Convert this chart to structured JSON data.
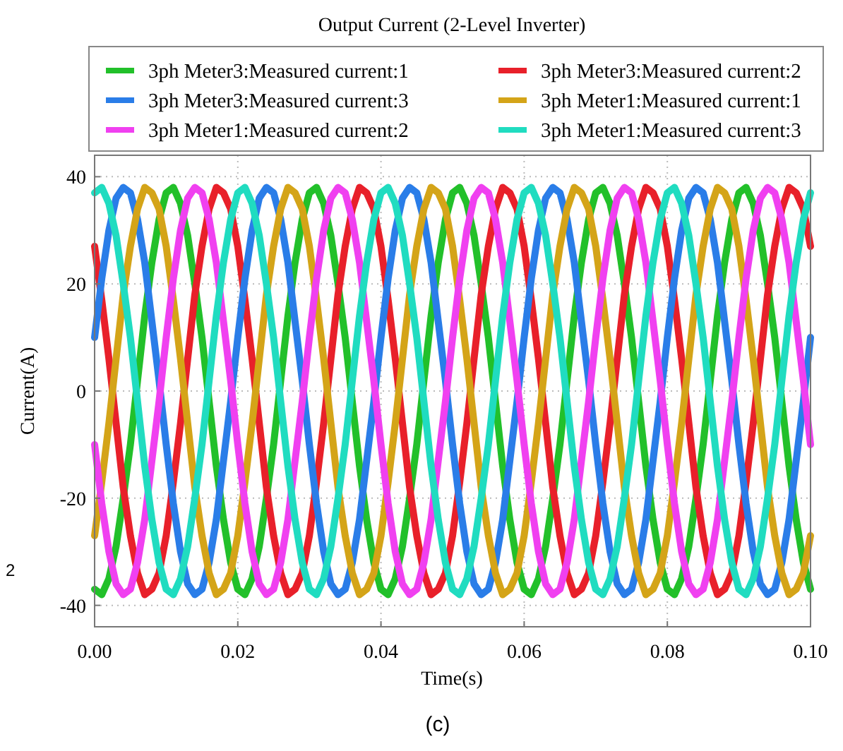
{
  "chart_data": {
    "type": "line",
    "title": "Output Current (2-Level Inverter)",
    "xlabel": "Time(s)",
    "ylabel": "Current(A)",
    "annotations": [
      "(c)",
      "2"
    ],
    "x": [
      0,
      0.001,
      0.002,
      0.003,
      0.004,
      0.005,
      0.006,
      0.007,
      0.008,
      0.009,
      0.01,
      0.011,
      0.012,
      0.013,
      0.014,
      0.015,
      0.016,
      0.017,
      0.018,
      0.019,
      0.02,
      0.021,
      0.022,
      0.023,
      0.024,
      0.025,
      0.026,
      0.027,
      0.028,
      0.029,
      0.03,
      0.031,
      0.032,
      0.033,
      0.034,
      0.035,
      0.036,
      0.037,
      0.038,
      0.039,
      0.04,
      0.041,
      0.042,
      0.043,
      0.044,
      0.045,
      0.046,
      0.047,
      0.048,
      0.049,
      0.05,
      0.051,
      0.052,
      0.053,
      0.054,
      0.055,
      0.056,
      0.057,
      0.058,
      0.059,
      0.06,
      0.061,
      0.062,
      0.063,
      0.064,
      0.065,
      0.066,
      0.067,
      0.068,
      0.069,
      0.07,
      0.071,
      0.072,
      0.073,
      0.074,
      0.075,
      0.076,
      0.077,
      0.078,
      0.079,
      0.08,
      0.081,
      0.082,
      0.083,
      0.084,
      0.085,
      0.086,
      0.087,
      0.088,
      0.089,
      0.09,
      0.091,
      0.092,
      0.093,
      0.094,
      0.095,
      0.096,
      0.097,
      0.098,
      0.099,
      0.1
    ],
    "series": [
      {
        "name": "3ph Meter3:Measured current:1",
        "color": "#22c02a",
        "values": [
          -37,
          -38,
          -35,
          -29,
          -20,
          -10,
          2,
          14,
          24,
          32,
          37,
          38,
          35,
          29,
          20,
          10,
          -2,
          -14,
          -24,
          -32,
          -37,
          -38,
          -35,
          -29,
          -20,
          -10,
          2,
          14,
          24,
          32,
          37,
          38,
          35,
          29,
          20,
          10,
          -2,
          -14,
          -24,
          -32,
          -37,
          -38,
          -35,
          -29,
          -20,
          -10,
          2,
          14,
          24,
          32,
          37,
          38,
          35,
          29,
          20,
          10,
          -2,
          -14,
          -24,
          -32,
          -37,
          -38,
          -35,
          -29,
          -20,
          -10,
          2,
          14,
          24,
          32,
          37,
          38,
          35,
          29,
          20,
          10,
          -2,
          -14,
          -24,
          -32,
          -37,
          -38,
          -35,
          -29,
          -20,
          -10,
          2,
          14,
          24,
          32,
          37,
          38,
          35,
          29,
          20,
          10,
          -2,
          -14,
          -24,
          -32,
          -37
        ]
      },
      {
        "name": "3ph Meter3:Measured current:2",
        "color": "#e8202a",
        "values": [
          27,
          17,
          6,
          -6,
          -18,
          -27,
          -34,
          -38,
          -37,
          -34,
          -27,
          -17,
          -6,
          6,
          18,
          27,
          34,
          38,
          37,
          34,
          27,
          17,
          6,
          -6,
          -18,
          -27,
          -34,
          -38,
          -37,
          -34,
          -27,
          -17,
          -6,
          6,
          18,
          27,
          34,
          38,
          37,
          34,
          27,
          17,
          6,
          -6,
          -18,
          -27,
          -34,
          -38,
          -37,
          -34,
          -27,
          -17,
          -6,
          6,
          18,
          27,
          34,
          38,
          37,
          34,
          27,
          17,
          6,
          -6,
          -18,
          -27,
          -34,
          -38,
          -37,
          -34,
          -27,
          -17,
          -6,
          6,
          18,
          27,
          34,
          38,
          37,
          34,
          27,
          17,
          6,
          -6,
          -18,
          -27,
          -34,
          -38,
          -37,
          -34,
          -27,
          -17,
          -6,
          6,
          18,
          27,
          34,
          38,
          37,
          34,
          27
        ]
      },
      {
        "name": "3ph Meter3:Measured current:3",
        "color": "#2a7de8",
        "values": [
          10,
          21,
          30,
          36,
          38,
          37,
          32,
          24,
          13,
          2,
          -10,
          -21,
          -30,
          -36,
          -38,
          -37,
          -32,
          -24,
          -13,
          -2,
          10,
          21,
          30,
          36,
          38,
          37,
          32,
          24,
          13,
          2,
          -10,
          -21,
          -30,
          -36,
          -38,
          -37,
          -32,
          -24,
          -13,
          -2,
          10,
          21,
          30,
          36,
          38,
          37,
          32,
          24,
          13,
          2,
          -10,
          -21,
          -30,
          -36,
          -38,
          -37,
          -32,
          -24,
          -13,
          -2,
          10,
          21,
          30,
          36,
          38,
          37,
          32,
          24,
          13,
          2,
          -10,
          -21,
          -30,
          -36,
          -38,
          -37,
          -32,
          -24,
          -13,
          -2,
          10,
          21,
          30,
          36,
          38,
          37,
          32,
          24,
          13,
          2,
          -10,
          -21,
          -30,
          -36,
          -38,
          -37,
          -32,
          -24,
          -13,
          -2,
          10
        ]
      },
      {
        "name": "3ph Meter1:Measured current:1",
        "color": "#d4a418",
        "values": [
          -27,
          -17,
          -6,
          6,
          18,
          27,
          34,
          38,
          37,
          34,
          27,
          17,
          6,
          -6,
          -18,
          -27,
          -34,
          -38,
          -37,
          -34,
          -27,
          -17,
          -6,
          6,
          18,
          27,
          34,
          38,
          37,
          34,
          27,
          17,
          6,
          -6,
          -18,
          -27,
          -34,
          -38,
          -37,
          -34,
          -27,
          -17,
          -6,
          6,
          18,
          27,
          34,
          38,
          37,
          34,
          27,
          17,
          6,
          -6,
          -18,
          -27,
          -34,
          -38,
          -37,
          -34,
          -27,
          -17,
          -6,
          6,
          18,
          27,
          34,
          38,
          37,
          34,
          27,
          17,
          6,
          -6,
          -18,
          -27,
          -34,
          -38,
          -37,
          -34,
          -27,
          -17,
          -6,
          6,
          18,
          27,
          34,
          38,
          37,
          34,
          27,
          17,
          6,
          -6,
          -18,
          -27,
          -34,
          -38,
          -37,
          -34,
          -27
        ]
      },
      {
        "name": "3ph Meter1:Measured current:2",
        "color": "#f040f0",
        "values": [
          -10,
          -21,
          -30,
          -36,
          -38,
          -37,
          -32,
          -24,
          -13,
          -2,
          10,
          21,
          30,
          36,
          38,
          37,
          32,
          24,
          13,
          2,
          -10,
          -21,
          -30,
          -36,
          -38,
          -37,
          -32,
          -24,
          -13,
          -2,
          10,
          21,
          30,
          36,
          38,
          37,
          32,
          24,
          13,
          2,
          -10,
          -21,
          -30,
          -36,
          -38,
          -37,
          -32,
          -24,
          -13,
          -2,
          10,
          21,
          30,
          36,
          38,
          37,
          32,
          24,
          13,
          2,
          -10,
          -21,
          -30,
          -36,
          -38,
          -37,
          -32,
          -24,
          -13,
          -2,
          10,
          21,
          30,
          36,
          38,
          37,
          32,
          24,
          13,
          2,
          -10,
          -21,
          -30,
          -36,
          -38,
          -37,
          -32,
          -24,
          -13,
          -2,
          10,
          21,
          30,
          36,
          38,
          37,
          32,
          24,
          13,
          2,
          -10
        ]
      },
      {
        "name": "3ph Meter1:Measured current:3",
        "color": "#20dcc0",
        "values": [
          37,
          38,
          35,
          29,
          20,
          10,
          -2,
          -14,
          -24,
          -32,
          -37,
          -38,
          -35,
          -29,
          -20,
          -10,
          2,
          14,
          24,
          32,
          37,
          38,
          35,
          29,
          20,
          10,
          -2,
          -14,
          -24,
          -32,
          -37,
          -38,
          -35,
          -29,
          -20,
          -10,
          2,
          14,
          24,
          32,
          37,
          38,
          35,
          29,
          20,
          10,
          -2,
          -14,
          -24,
          -32,
          -37,
          -38,
          -35,
          -29,
          -20,
          -10,
          2,
          14,
          24,
          32,
          37,
          38,
          35,
          29,
          20,
          10,
          -2,
          -14,
          -24,
          -32,
          -37,
          -38,
          -35,
          -29,
          -20,
          -10,
          2,
          14,
          24,
          32,
          37,
          38,
          35,
          29,
          20,
          10,
          -2,
          -14,
          -24,
          -32,
          -37,
          -38,
          -35,
          -29,
          -20,
          -10,
          2,
          14,
          24,
          32,
          37
        ]
      }
    ],
    "xlim": [
      0,
      0.1
    ],
    "xticks": [
      {
        "value": 0,
        "label": "0.00"
      },
      {
        "value": 0.02,
        "label": "0.02"
      },
      {
        "value": 0.04,
        "label": "0.04"
      },
      {
        "value": 0.06,
        "label": "0.06"
      },
      {
        "value": 0.08,
        "label": "0.08"
      },
      {
        "value": 0.1,
        "label": "0.10"
      }
    ],
    "ylim": [
      -44,
      44
    ],
    "yticks": [
      -40,
      -20,
      0,
      20,
      40
    ],
    "grid": true,
    "legend": "top",
    "line_style": "solid"
  }
}
